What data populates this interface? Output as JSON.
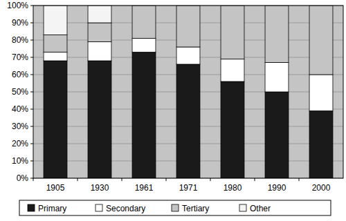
{
  "chart_data": {
    "type": "bar",
    "stacked": true,
    "grid": true,
    "legend": "bottom",
    "categories": [
      "1905",
      "1930",
      "1961",
      "1971",
      "1980",
      "1990",
      "2000"
    ],
    "series": [
      {
        "name": "Primary",
        "color": "#1a1a1a",
        "values": [
          68,
          68,
          73,
          66,
          56,
          50,
          39
        ]
      },
      {
        "name": "Secondary",
        "color": "#ffffff",
        "values": [
          5,
          11,
          8,
          10,
          13,
          17,
          21
        ]
      },
      {
        "name": "Tertiary",
        "color": "#c4c4c4",
        "values": [
          10,
          11,
          19,
          24,
          31,
          33,
          40
        ]
      },
      {
        "name": "Other",
        "color": "#f4f4f4",
        "values": [
          17,
          10,
          0,
          0,
          0,
          0,
          0
        ]
      }
    ],
    "ylim": [
      0,
      100
    ],
    "yticks": [
      {
        "value": 0,
        "label": "0%"
      },
      {
        "value": 10,
        "label": "10%"
      },
      {
        "value": 20,
        "label": "20%"
      },
      {
        "value": 30,
        "label": "30%"
      },
      {
        "value": 40,
        "label": "40%"
      },
      {
        "value": 50,
        "label": "50%"
      },
      {
        "value": 60,
        "label": "60%"
      },
      {
        "value": 70,
        "label": "70%"
      },
      {
        "value": 80,
        "label": "80%"
      },
      {
        "value": 90,
        "label": "90%"
      },
      {
        "value": 100,
        "label": "100%"
      }
    ]
  }
}
